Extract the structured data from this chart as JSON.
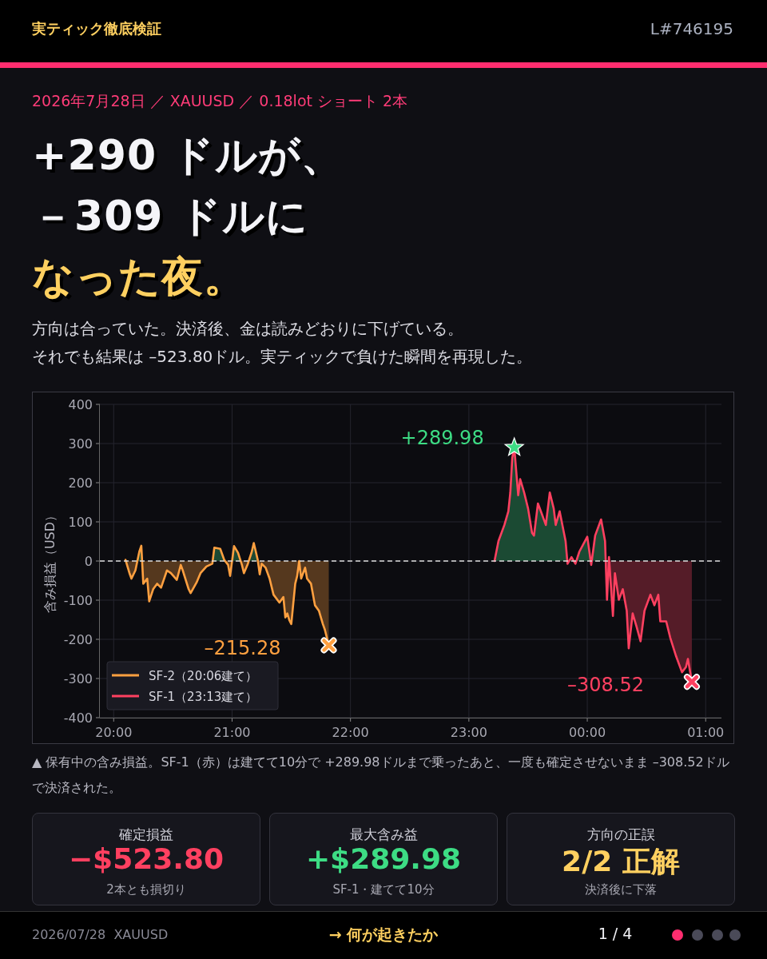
{
  "chart_data": {
    "type": "area",
    "title": "+290 ドルが、－309 ドルになった夜。",
    "subtitle": "2026年7月28日 ／ XAUUSD ／ 0.18lot ショート 2本",
    "ylabel": "含み損益（USD）",
    "xlim": [
      "2026-07-28T19:53",
      "2026-07-29T01:08"
    ],
    "ylim": [
      -400,
      400
    ],
    "xticks": [
      {
        "value": "2026-07-28T20:00",
        "label": "20:00"
      },
      {
        "value": "2026-07-28T21:00",
        "label": "21:00"
      },
      {
        "value": "2026-07-28T22:00",
        "label": "22:00"
      },
      {
        "value": "2026-07-28T23:00",
        "label": "23:00"
      },
      {
        "value": "2026-07-29T00:00",
        "label": "00:00"
      },
      {
        "value": "2026-07-29T01:00",
        "label": "01:00"
      }
    ],
    "yticks": [
      -400,
      -300,
      -200,
      -100,
      0,
      100,
      200,
      300,
      400
    ],
    "grid": true,
    "legend": "bottom left",
    "marker": "none",
    "line_style": "solid",
    "ref_lines": [
      {
        "axis": "y",
        "value": 0,
        "label": null,
        "color": "#dddddd",
        "line_style": "dashed"
      }
    ],
    "series": [
      {
        "name": "SF-2（20:06建て）",
        "color": "#ffa040",
        "x": [
          "2026-07-28T20:06",
          "2026-07-28T20:08",
          "2026-07-28T20:09",
          "2026-07-28T20:11",
          "2026-07-28T20:13",
          "2026-07-28T20:14",
          "2026-07-28T20:15",
          "2026-07-28T20:17",
          "2026-07-28T20:18",
          "2026-07-28T20:20",
          "2026-07-28T20:22",
          "2026-07-28T20:24",
          "2026-07-28T20:27",
          "2026-07-28T20:29",
          "2026-07-28T20:32",
          "2026-07-28T20:34",
          "2026-07-28T20:35",
          "2026-07-28T20:38",
          "2026-07-28T20:39",
          "2026-07-28T20:42",
          "2026-07-28T20:44",
          "2026-07-28T20:47",
          "2026-07-28T20:50",
          "2026-07-28T20:51",
          "2026-07-28T20:54",
          "2026-07-28T20:56",
          "2026-07-28T20:58",
          "2026-07-28T20:59",
          "2026-07-28T21:01",
          "2026-07-28T21:03",
          "2026-07-28T21:05",
          "2026-07-28T21:06",
          "2026-07-28T21:08",
          "2026-07-28T21:10",
          "2026-07-28T21:11",
          "2026-07-28T21:13",
          "2026-07-28T21:14",
          "2026-07-28T21:15",
          "2026-07-28T21:17",
          "2026-07-28T21:19",
          "2026-07-28T21:21",
          "2026-07-28T21:24",
          "2026-07-28T21:26",
          "2026-07-28T21:27",
          "2026-07-28T21:28",
          "2026-07-28T21:29",
          "2026-07-28T21:30",
          "2026-07-28T21:32",
          "2026-07-28T21:33",
          "2026-07-28T21:34",
          "2026-07-28T21:35",
          "2026-07-28T21:37",
          "2026-07-28T21:38",
          "2026-07-28T21:40",
          "2026-07-28T21:42",
          "2026-07-28T21:44",
          "2026-07-28T21:46",
          "2026-07-28T21:47",
          "2026-07-28T21:49"
        ],
        "values": [
          3,
          -31,
          -45,
          -24,
          24,
          39,
          -58,
          -45,
          -103,
          -72,
          -58,
          -68,
          -24,
          -31,
          -48,
          -10,
          -24,
          -72,
          -82,
          -55,
          -31,
          -14,
          -7,
          34,
          31,
          3,
          -10,
          -38,
          38,
          21,
          -10,
          -31,
          -7,
          24,
          46,
          3,
          -34,
          -7,
          -17,
          -45,
          -86,
          -106,
          -92,
          -144,
          -134,
          -151,
          -161,
          -58,
          -38,
          0,
          -45,
          -17,
          -45,
          -58,
          -113,
          -127,
          -161,
          -175,
          -215.28
        ]
      },
      {
        "name": "SF-1（23:13建て）",
        "color": "#ff4060",
        "x": [
          "2026-07-28T23:13",
          "2026-07-28T23:15",
          "2026-07-28T23:18",
          "2026-07-28T23:20",
          "2026-07-28T23:21",
          "2026-07-28T23:22",
          "2026-07-28T23:23",
          "2026-07-28T23:24",
          "2026-07-28T23:25",
          "2026-07-28T23:26",
          "2026-07-28T23:28",
          "2026-07-28T23:30",
          "2026-07-28T23:32",
          "2026-07-28T23:33",
          "2026-07-28T23:35",
          "2026-07-28T23:37",
          "2026-07-28T23:39",
          "2026-07-28T23:41",
          "2026-07-28T23:43",
          "2026-07-28T23:44",
          "2026-07-28T23:46",
          "2026-07-28T23:49",
          "2026-07-28T23:50",
          "2026-07-28T23:52",
          "2026-07-28T23:54",
          "2026-07-28T23:56",
          "2026-07-29T00:00",
          "2026-07-29T00:02",
          "2026-07-29T00:04",
          "2026-07-29T00:07",
          "2026-07-29T00:09",
          "2026-07-29T00:10",
          "2026-07-29T00:11",
          "2026-07-29T00:13",
          "2026-07-29T00:14",
          "2026-07-29T00:16",
          "2026-07-29T00:18",
          "2026-07-29T00:20",
          "2026-07-29T00:21",
          "2026-07-29T00:23",
          "2026-07-29T00:25",
          "2026-07-29T00:27",
          "2026-07-29T00:29",
          "2026-07-29T00:32",
          "2026-07-29T00:34",
          "2026-07-29T00:36",
          "2026-07-29T00:37",
          "2026-07-29T00:40",
          "2026-07-29T00:42",
          "2026-07-29T00:45",
          "2026-07-29T00:48",
          "2026-07-29T00:50",
          "2026-07-29T00:51",
          "2026-07-29T00:53"
        ],
        "values": [
          0,
          51,
          92,
          127,
          175,
          264,
          289.98,
          229,
          168,
          209,
          175,
          134,
          72,
          65,
          147,
          120,
          92,
          175,
          134,
          92,
          127,
          51,
          -7,
          10,
          -7,
          24,
          62,
          -10,
          65,
          106,
          51,
          -99,
          10,
          -140,
          -31,
          -99,
          -72,
          -127,
          -223,
          -134,
          -168,
          -205,
          -127,
          -86,
          -113,
          -86,
          -154,
          -154,
          -195,
          -243,
          -284,
          -271,
          -250,
          -308.52
        ]
      }
    ],
    "annotations": [
      "実ティック徹底検証",
      "L#746195",
      "方向は合っていた。決済後、金は読みどおりに下げている。",
      "それでも結果は –523.80ドル。実ティックで負けた瞬間を再現した。",
      "▲ 保有中の含み損益。SF-1（赤）は建てて10分で +289.98ドルまで乗ったあと、一度も確定させないまま –308.52ドルで決済された。",
      {
        "text": "+289.98",
        "x": "2026-07-28T23:23",
        "y": 289.98
      },
      {
        "text": "–215.28",
        "x": "2026-07-28T21:49",
        "y": -215.28
      },
      {
        "text": "–308.52",
        "x": "2026-07-29T00:53",
        "y": -308.52
      },
      "確定損益",
      "−$523.80",
      "2本とも損切り",
      "最大含み益",
      "+$289.98",
      "SF-1・建てて10分",
      "方向の正誤",
      "2/2 正解",
      "決済後に下落",
      "2026/07/28  XAUUSD",
      "→ 何が起きたか",
      "1 / 4"
    ]
  }
}
